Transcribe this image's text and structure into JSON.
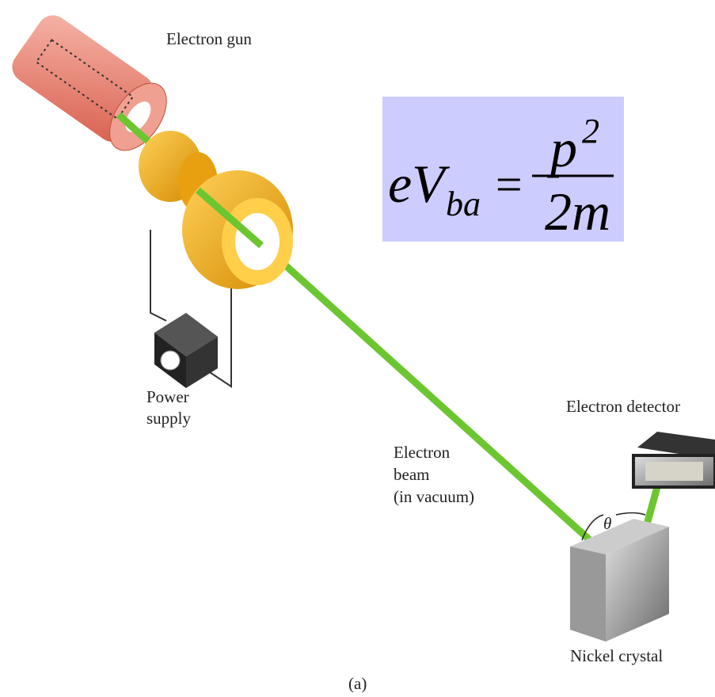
{
  "labels": {
    "electron_gun": "Electron gun",
    "power_supply": [
      "Power",
      "supply"
    ],
    "electron_beam": [
      "Electron",
      "beam",
      "(in vacuum)"
    ],
    "electron_detector": "Electron detector",
    "angle": "θ",
    "nickel_crystal": "Nickel crystal",
    "caption": "(a)"
  },
  "formula": {
    "lhs": "eV",
    "lhs_sub": "ba",
    "equals": "=",
    "numerator": "p",
    "numerator_sup": "2",
    "denominator": "2m"
  }
}
